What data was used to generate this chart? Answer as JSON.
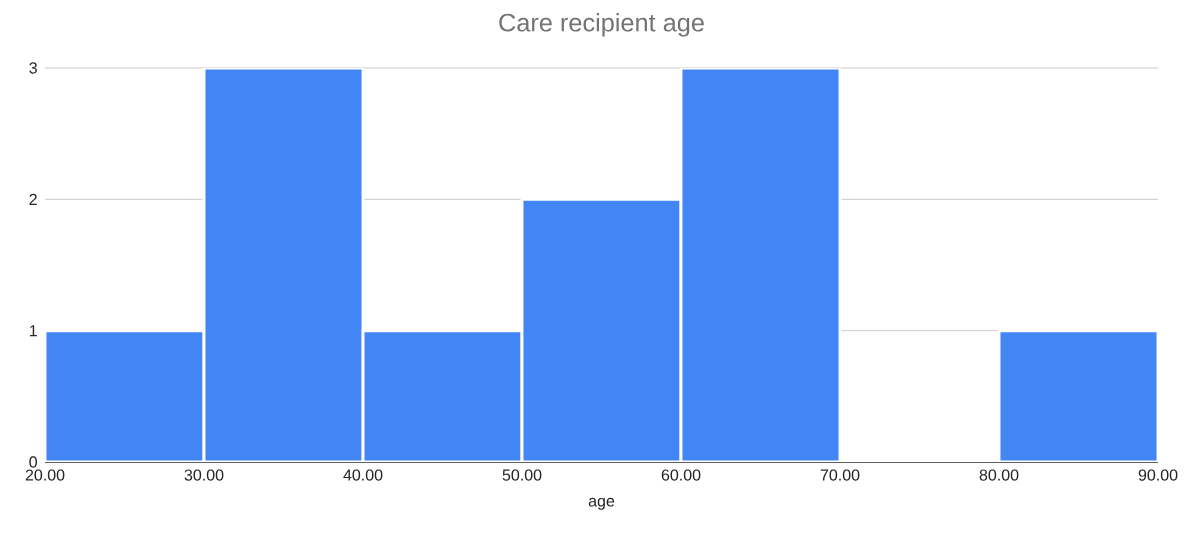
{
  "chart_data": {
    "type": "histogram",
    "title": "Care recipient age",
    "xlabel": "age",
    "bins": [
      20,
      30,
      40,
      50,
      60,
      70,
      80,
      90
    ],
    "values": [
      1,
      3,
      1,
      2,
      3,
      0,
      1
    ],
    "color": "#4285f4",
    "xlim": [
      20,
      90
    ],
    "xticks": [
      {
        "value": 20,
        "label": "20.00"
      },
      {
        "value": 30,
        "label": "30.00"
      },
      {
        "value": 40,
        "label": "40.00"
      },
      {
        "value": 50,
        "label": "50.00"
      },
      {
        "value": 60,
        "label": "60.00"
      },
      {
        "value": 70,
        "label": "70.00"
      },
      {
        "value": 80,
        "label": "80.00"
      },
      {
        "value": 90,
        "label": "90.00"
      }
    ],
    "ylim": [
      0,
      3
    ],
    "yticks": [
      0,
      1,
      2,
      3
    ],
    "grid": "y"
  }
}
